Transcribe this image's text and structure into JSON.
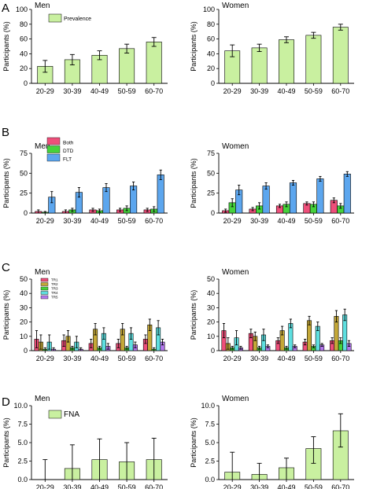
{
  "figure": {
    "panels": [
      {
        "letter": "A"
      },
      {
        "letter": "B"
      },
      {
        "letter": "C"
      },
      {
        "letter": "D"
      }
    ]
  },
  "chart_data": [
    {
      "id": "A-men",
      "panel": "A",
      "type": "bar",
      "title": "Men",
      "ylabel": "Participants (%)",
      "ylim": [
        0,
        100
      ],
      "yticks": [
        0,
        20,
        40,
        60,
        80,
        100
      ],
      "categories": [
        "20-29",
        "30-39",
        "40-49",
        "50-59",
        "60-70"
      ],
      "legend": {
        "placement": "top-left"
      },
      "series": [
        {
          "name": "Prevalence",
          "color": "#c9f0a0",
          "values": [
            23,
            32,
            38,
            47,
            56
          ],
          "err": [
            8,
            7,
            6,
            6,
            6
          ]
        }
      ]
    },
    {
      "id": "A-women",
      "panel": "A",
      "type": "bar",
      "title": "Women",
      "ylabel": "Participants (%)",
      "ylim": [
        0,
        100
      ],
      "yticks": [
        0,
        20,
        40,
        60,
        80,
        100
      ],
      "categories": [
        "20-29",
        "30-39",
        "40-49",
        "50-59",
        "60-70"
      ],
      "series": [
        {
          "color": "#c9f0a0",
          "values": [
            44,
            48,
            59,
            65,
            76
          ],
          "err": [
            8,
            5,
            4,
            4,
            4
          ]
        }
      ]
    },
    {
      "id": "B-men",
      "panel": "B",
      "type": "bar",
      "title": "Men",
      "ylabel": "Participants (%)",
      "ylim": [
        0,
        75
      ],
      "yticks": [
        0,
        25,
        50,
        75
      ],
      "categories": [
        "20-29",
        "30-39",
        "40-49",
        "50-59",
        "60-70"
      ],
      "legend": {
        "placement": "top-left"
      },
      "series": [
        {
          "name": "Both",
          "color": "#ee4f7a",
          "values": [
            2,
            2,
            4,
            4,
            4
          ],
          "err": [
            2,
            2,
            2,
            2,
            2
          ]
        },
        {
          "name": "DTD",
          "color": "#46d23c",
          "values": [
            1,
            4,
            3,
            6,
            5
          ],
          "err": [
            1,
            2,
            2,
            3,
            3
          ]
        },
        {
          "name": "FLT",
          "color": "#5ca6ee",
          "values": [
            20,
            26,
            32,
            34,
            48
          ],
          "err": [
            7,
            6,
            5,
            5,
            6
          ]
        }
      ]
    },
    {
      "id": "B-women",
      "panel": "B",
      "type": "bar",
      "title": "Women",
      "ylabel": "Participants (%)",
      "ylim": [
        0,
        75
      ],
      "yticks": [
        0,
        25,
        50,
        75
      ],
      "categories": [
        "20-29",
        "30-39",
        "40-49",
        "50-59",
        "60-70"
      ],
      "series": [
        {
          "color": "#ee4f7a",
          "values": [
            3,
            5,
            9,
            12,
            16
          ],
          "err": [
            2,
            2,
            2,
            2,
            3
          ]
        },
        {
          "color": "#46d23c",
          "values": [
            13,
            9,
            11,
            11,
            9
          ],
          "err": [
            5,
            4,
            3,
            3,
            3
          ]
        },
        {
          "color": "#5ca6ee",
          "values": [
            29,
            34,
            38,
            43,
            49
          ],
          "err": [
            6,
            4,
            3,
            3,
            3
          ]
        }
      ]
    },
    {
      "id": "C-men",
      "panel": "C",
      "type": "bar",
      "title": "Men",
      "ylabel": "Participants (%)",
      "ylim": [
        0,
        50
      ],
      "yticks": [
        0,
        10,
        20,
        30,
        40,
        50
      ],
      "categories": [
        "20-29",
        "30-39",
        "40-49",
        "50-59",
        "60-70"
      ],
      "legend": {
        "placement": "top-left"
      },
      "series": [
        {
          "name": "TR1",
          "color": "#ee4f7a",
          "values": [
            8,
            7,
            5,
            5,
            8
          ],
          "err": [
            6,
            4,
            3,
            3,
            3
          ]
        },
        {
          "name": "TR2",
          "color": "#c4a838",
          "values": [
            6,
            10,
            15,
            15,
            18
          ],
          "err": [
            5,
            4,
            4,
            4,
            4
          ]
        },
        {
          "name": "TR3",
          "color": "#46d23c",
          "values": [
            1,
            2,
            2,
            2,
            1
          ],
          "err": [
            1,
            1,
            1,
            1,
            1
          ]
        },
        {
          "name": "TR4",
          "color": "#5edfe0",
          "values": [
            6,
            6,
            12,
            12,
            16
          ],
          "err": [
            5,
            4,
            4,
            4,
            5
          ]
        },
        {
          "name": "TR5",
          "color": "#b478ee",
          "values": [
            1,
            1,
            3,
            4,
            6
          ],
          "err": [
            1,
            1,
            2,
            2,
            2
          ]
        }
      ]
    },
    {
      "id": "C-women",
      "panel": "C",
      "type": "bar",
      "title": "Women",
      "ylabel": "Participants (%)",
      "ylim": [
        0,
        50
      ],
      "yticks": [
        0,
        10,
        20,
        30,
        40,
        50
      ],
      "categories": [
        "20-29",
        "30-39",
        "40-49",
        "50-59",
        "60-70"
      ],
      "series": [
        {
          "color": "#ee4f7a",
          "values": [
            14,
            12,
            7,
            6,
            7
          ],
          "err": [
            5,
            3,
            2,
            2,
            2
          ]
        },
        {
          "color": "#c4a838",
          "values": [
            5,
            10,
            14,
            21,
            24
          ],
          "err": [
            4,
            3,
            3,
            3,
            4
          ]
        },
        {
          "color": "#46d23c",
          "values": [
            2,
            2,
            2,
            3,
            7
          ],
          "err": [
            1,
            1,
            1,
            1,
            2
          ]
        },
        {
          "color": "#5edfe0",
          "values": [
            9,
            11,
            19,
            17,
            25
          ],
          "err": [
            5,
            4,
            3,
            3,
            4
          ]
        },
        {
          "color": "#b478ee",
          "values": [
            2,
            3,
            3,
            4,
            5
          ],
          "err": [
            1,
            1,
            1,
            1,
            2
          ]
        }
      ]
    },
    {
      "id": "D-men",
      "panel": "D",
      "type": "bar",
      "title": "Men",
      "ylabel": "Participants (%)",
      "ylim": [
        0,
        10
      ],
      "yticks": [
        0.0,
        2.5,
        5.0,
        7.5,
        10.0
      ],
      "categories": [
        "20-29",
        "30-39",
        "40-49",
        "50-59",
        "60-70"
      ],
      "legend": {
        "placement": "top-left"
      },
      "series": [
        {
          "name": "FNA",
          "color": "#c9f0a0",
          "values": [
            0,
            1.5,
            2.7,
            2.4,
            2.7
          ],
          "errlo": [
            0,
            1.5,
            2.7,
            2.4,
            2.7
          ],
          "errhi": [
            2.7,
            3.2,
            2.8,
            2.6,
            2.9
          ]
        }
      ]
    },
    {
      "id": "D-women",
      "panel": "D",
      "type": "bar",
      "title": "Women",
      "ylabel": "Participants (%)",
      "ylim": [
        0,
        10
      ],
      "yticks": [
        0.0,
        2.5,
        5.0,
        7.5,
        10.0
      ],
      "categories": [
        "20-29",
        "30-39",
        "40-49",
        "50-59",
        "60-70"
      ],
      "series": [
        {
          "color": "#c9f0a0",
          "values": [
            1.0,
            0.7,
            1.6,
            4.2,
            6.6
          ],
          "errlo": [
            1.0,
            0.7,
            1.6,
            2.0,
            2.2
          ],
          "errhi": [
            2.7,
            1.5,
            1.3,
            1.6,
            2.3
          ]
        }
      ]
    }
  ]
}
